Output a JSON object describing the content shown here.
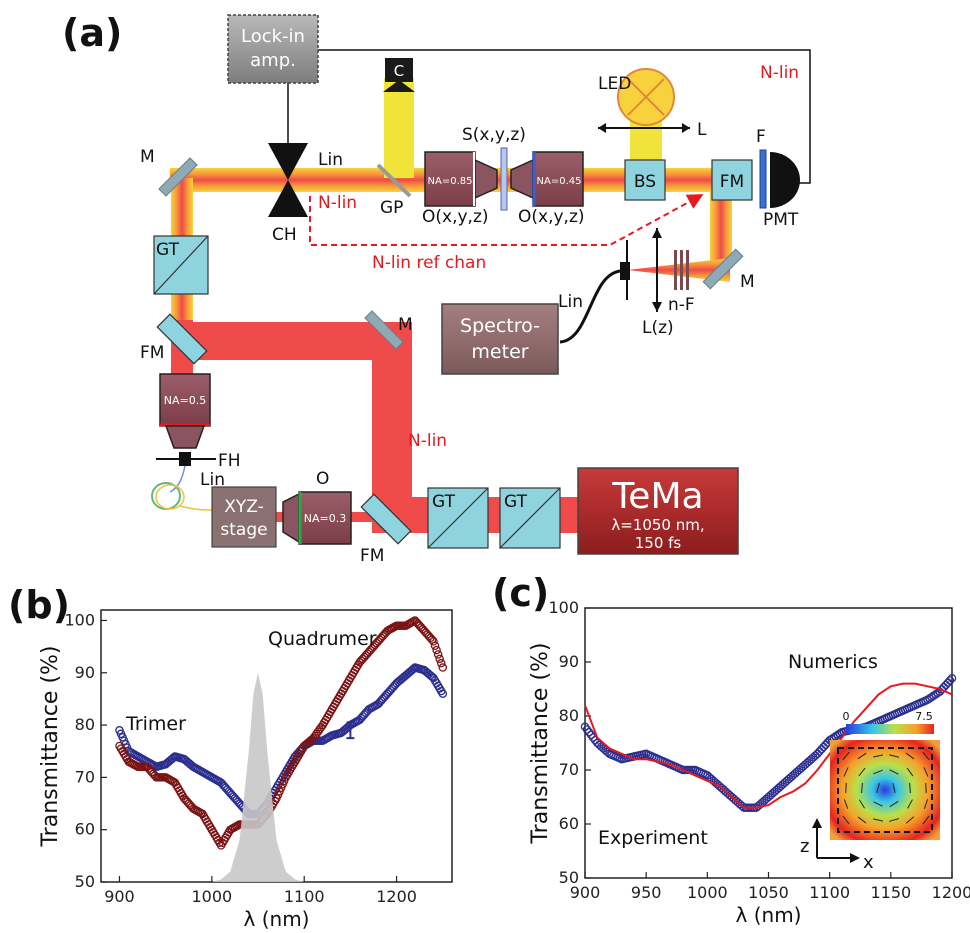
{
  "panel_a": {
    "panel_label": "(a)",
    "lockin": [
      "Lock-in",
      "amp."
    ],
    "c_label": "C",
    "led": "LED",
    "l_label": "L",
    "f_label": "F",
    "nlin_top": "N-lin",
    "m_label": "M",
    "lin_label": "Lin",
    "s_label": "S(x,y,z)",
    "na085": "NA=0.85",
    "na045": "NA=0.45",
    "bs": "BS",
    "fm": "FM",
    "pmt": "PMT",
    "nlin_label": "N-lin",
    "gp": "GP",
    "o_left": "O(x,y,z)",
    "o_right": "O(x,y,z)",
    "ch": "CH",
    "gt": "GT",
    "nlin_ref": "N-lin ref chan",
    "lin_spec": "Lin",
    "lz": "L(z)",
    "nf": "n-F",
    "spectrometer": [
      "Spectro-",
      "meter"
    ],
    "na05": "NA=0.5",
    "fh": "FH",
    "lin_fiber": "Lin",
    "xyz": [
      "XYZ-",
      "stage"
    ],
    "o_label": "O",
    "na03": "NA=0.3",
    "nlin_vert": "N-lin",
    "tema_title": "TeMa",
    "tema_line1": "λ=1050 nm,",
    "tema_line2": "150 fs"
  },
  "panel_b_label": "(b)",
  "panel_c_label": "(c)",
  "colors": {
    "trimer": "#2b2e8f",
    "quadrumer": "#7a1414",
    "numerics": "#e8191e",
    "pulse": "#c8c8c8",
    "beam_red": "#ef4b4b",
    "cube": "#8fd3df",
    "objective": "#8a4a55"
  },
  "chart_data": [
    {
      "type": "line",
      "panel": "(b)",
      "xlabel": "λ (nm)",
      "ylabel": "Transmittance (%)",
      "xlim": [
        880,
        1260
      ],
      "ylim": [
        50,
        102
      ],
      "xticks": [
        900,
        1000,
        1100,
        1200
      ],
      "yticks": [
        50,
        60,
        70,
        80,
        90,
        100
      ],
      "series": [
        {
          "name": "Trimer",
          "style": "open-circles",
          "x": [
            900,
            910,
            920,
            930,
            940,
            950,
            960,
            970,
            980,
            990,
            1000,
            1010,
            1020,
            1030,
            1040,
            1050,
            1060,
            1070,
            1080,
            1090,
            1100,
            1110,
            1120,
            1130,
            1140,
            1150,
            1160,
            1170,
            1180,
            1190,
            1200,
            1210,
            1220,
            1230,
            1240,
            1250
          ],
          "y": [
            79,
            75,
            74,
            73,
            72,
            72.5,
            74,
            73.5,
            72,
            71,
            70,
            69,
            67,
            65,
            63,
            63,
            65,
            68,
            71,
            74,
            76,
            77,
            77,
            78,
            78.5,
            80,
            81,
            83,
            84,
            86,
            88,
            89.5,
            91,
            90.5,
            89,
            86
          ]
        },
        {
          "name": "Quadrumer",
          "style": "open-circles",
          "x": [
            900,
            910,
            920,
            930,
            940,
            950,
            960,
            970,
            980,
            990,
            1000,
            1010,
            1020,
            1030,
            1040,
            1050,
            1060,
            1070,
            1080,
            1090,
            1100,
            1110,
            1120,
            1130,
            1140,
            1150,
            1160,
            1170,
            1180,
            1190,
            1200,
            1210,
            1220,
            1230,
            1240,
            1250
          ],
          "y": [
            76,
            73,
            72,
            72,
            70,
            70,
            69,
            66,
            64,
            63,
            60,
            57,
            60,
            61,
            61,
            61,
            63,
            66,
            70,
            73,
            76,
            77.5,
            80,
            83,
            86,
            89,
            92,
            94,
            96,
            98,
            99,
            99,
            100,
            98,
            96,
            91
          ]
        },
        {
          "name": "pulse",
          "style": "filled-gaussian",
          "x": [
            1000,
            1010,
            1020,
            1030,
            1040,
            1045,
            1050,
            1055,
            1060,
            1070,
            1080,
            1090,
            1100
          ],
          "y": [
            50,
            50.5,
            52,
            58,
            75,
            86,
            90,
            86,
            75,
            58,
            52,
            50.5,
            50
          ]
        }
      ],
      "error_bar": {
        "x": 1150,
        "y": 79,
        "yerr": 1.5
      }
    },
    {
      "type": "line",
      "panel": "(c)",
      "xlabel": "λ (nm)",
      "ylabel": "Transmittance (%)",
      "xlim": [
        900,
        1200
      ],
      "ylim": [
        50,
        100
      ],
      "xticks": [
        900,
        950,
        1000,
        1050,
        1100,
        1150,
        1200
      ],
      "yticks": [
        50,
        60,
        70,
        80,
        90,
        100
      ],
      "series": [
        {
          "name": "Experiment",
          "style": "open-circles",
          "x": [
            900,
            910,
            920,
            930,
            940,
            950,
            960,
            970,
            980,
            990,
            1000,
            1010,
            1020,
            1030,
            1040,
            1050,
            1060,
            1070,
            1080,
            1090,
            1100,
            1110,
            1120,
            1130,
            1140,
            1150,
            1160,
            1170,
            1180,
            1190,
            1200
          ],
          "y": [
            78,
            75,
            73,
            72,
            72.5,
            73,
            72,
            71,
            70,
            70,
            69,
            67,
            65,
            63,
            63,
            65,
            67,
            69,
            71,
            73,
            75.5,
            77,
            77.5,
            78,
            79,
            80,
            81,
            82,
            83,
            84.5,
            87
          ]
        },
        {
          "name": "Numerics",
          "style": "line",
          "x": [
            900,
            910,
            920,
            930,
            940,
            950,
            960,
            970,
            980,
            990,
            1000,
            1010,
            1020,
            1030,
            1040,
            1050,
            1060,
            1070,
            1080,
            1090,
            1100,
            1110,
            1120,
            1130,
            1140,
            1150,
            1160,
            1170,
            1180,
            1190,
            1200
          ],
          "y": [
            82,
            76,
            74,
            73,
            72,
            72,
            71.5,
            71,
            70,
            69,
            68,
            67,
            65,
            63,
            63,
            63.5,
            65,
            66,
            67.5,
            70,
            73,
            76,
            79,
            81.5,
            84,
            85.5,
            86,
            86,
            85.5,
            85,
            84
          ]
        }
      ],
      "inset": {
        "colorbar_min": "0",
        "colorbar_max": "7.5",
        "axis_z": "z",
        "axis_x": "x"
      }
    }
  ]
}
